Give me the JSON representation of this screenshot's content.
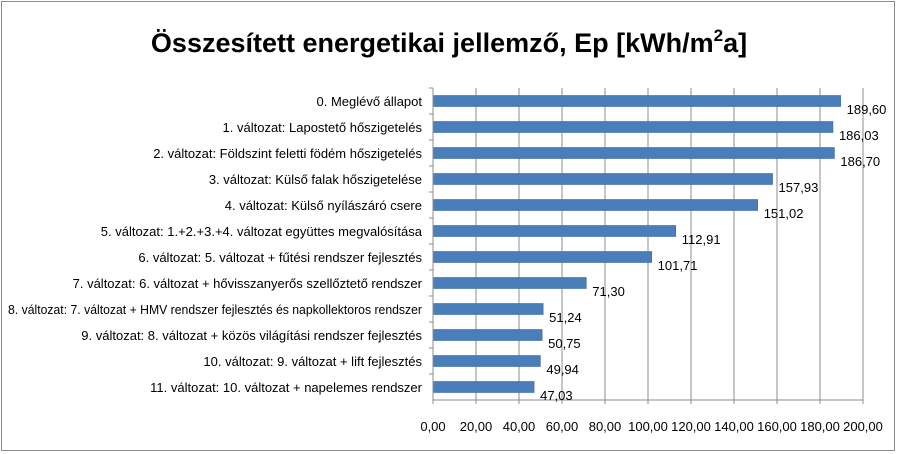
{
  "chart_data": {
    "type": "bar",
    "orientation": "horizontal",
    "title_main": "Összesített energetikai jellemző, Ep [kWh/m",
    "title_sup": "2",
    "title_tail": "a]",
    "categories": [
      "0. Meglévő állapot",
      "1. változat: Lapostető hőszigetelés",
      "2. változat: Földszint feletti födém hőszigetelés",
      "3. változat: Külső falak hőszigetelése",
      "4. változat: Külső nyílászáró csere",
      "5. változat: 1.+2.+3.+4. változat együttes megvalósítása",
      "6. változat: 5. változat + fűtési rendszer fejlesztés",
      "7. változat: 6. változat + hővisszanyerős szellőztető rendszer",
      "8. változat: 7. változat + HMV rendszer fejlesztés  és napkollektoros rendszer",
      "9. változat: 8. változat + közös világítási rendszer fejlesztés",
      "10. változat: 9. változat + lift fejlesztés",
      "11. változat: 10. változat + napelemes rendszer"
    ],
    "values": [
      189.6,
      186.03,
      186.7,
      157.93,
      151.02,
      112.91,
      101.71,
      71.3,
      51.24,
      50.75,
      49.94,
      47.03
    ],
    "value_labels": [
      "189,60",
      "186,03",
      "186,70",
      "157,93",
      "151,02",
      "112,91",
      "101,71",
      "71,30",
      "51,24",
      "50,75",
      "49,94",
      "47,03"
    ],
    "xlim": [
      0,
      200
    ],
    "x_ticks": [
      "0,00",
      "20,00",
      "40,00",
      "60,00",
      "80,00",
      "100,00",
      "120,00",
      "140,00",
      "160,00",
      "180,00",
      "200,00"
    ],
    "grid": true,
    "legend": "none",
    "bar_color": "#4a7ebb",
    "bar_edge_color": "#3a6aa5",
    "grid_color": "#8c8c8c",
    "text_color": "#000000"
  }
}
